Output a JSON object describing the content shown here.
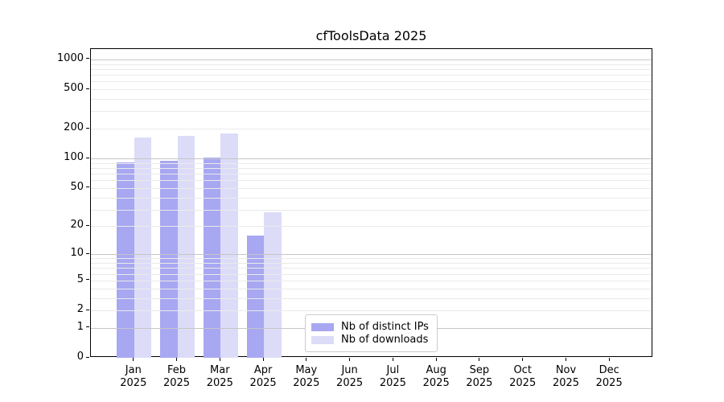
{
  "window": {
    "title": "cfToolsData 2025"
  },
  "chart_data": {
    "type": "bar",
    "title": "cfToolsData 2025",
    "x": {
      "months": [
        "Jan",
        "Feb",
        "Mar",
        "Apr",
        "May",
        "Jun",
        "Jul",
        "Aug",
        "Sep",
        "Oct",
        "Nov",
        "Dec"
      ],
      "year": "2025"
    },
    "series": [
      {
        "name": "Nb of distinct IPs",
        "color": "#a7a7f2",
        "values": [
          92,
          94,
          103,
          16,
          null,
          null,
          null,
          null,
          null,
          null,
          null,
          null
        ]
      },
      {
        "name": "Nb of downloads",
        "color": "#dcdcf8",
        "values": [
          163,
          168,
          180,
          28,
          null,
          null,
          null,
          null,
          null,
          null,
          null,
          null
        ]
      }
    ],
    "yscale": "log1p",
    "y_ticks": [
      0,
      1,
      2,
      5,
      10,
      20,
      50,
      100,
      200,
      500,
      1000
    ],
    "ylim": [
      0,
      1270
    ],
    "grid": "both",
    "legend_position": "lower center"
  },
  "colors": {
    "bar_distinct_ips": "#a7a7f2",
    "bar_downloads": "#dcdcf8",
    "grid_major": "#c6c6c6",
    "grid_minor": "#eaeaea",
    "axis": "#000000",
    "legend_border": "#cccccc",
    "background": "#ffffff"
  }
}
